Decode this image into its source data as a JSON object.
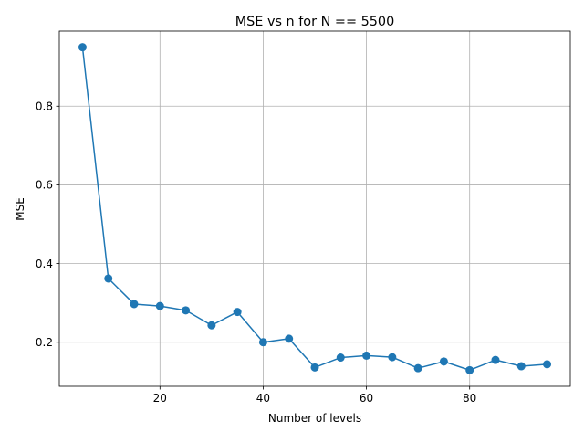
{
  "chart_data": {
    "type": "line",
    "title": "MSE vs n for N == 5500",
    "xlabel": "Number of levels",
    "ylabel": "MSE",
    "xlim": [
      0.5,
      99.5
    ],
    "ylim": [
      0.088,
      0.991
    ],
    "xticks": [
      20,
      40,
      60,
      80
    ],
    "yticks": [
      0.2,
      0.4,
      0.6,
      0.8
    ],
    "grid": true,
    "series": [
      {
        "color": "#1f77b4",
        "x": [
          5,
          10,
          15,
          20,
          25,
          30,
          35,
          40,
          45,
          50,
          55,
          60,
          65,
          70,
          75,
          80,
          85,
          90,
          95
        ],
        "y": [
          0.95,
          0.362,
          0.297,
          0.292,
          0.281,
          0.243,
          0.277,
          0.2,
          0.209,
          0.136,
          0.161,
          0.166,
          0.162,
          0.134,
          0.151,
          0.129,
          0.155,
          0.139,
          0.144
        ]
      }
    ]
  }
}
